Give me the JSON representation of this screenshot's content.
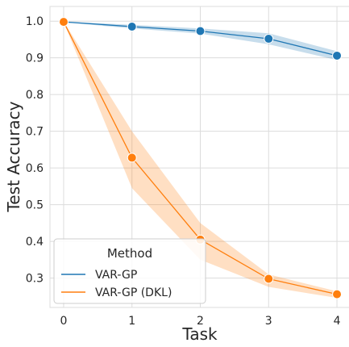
{
  "chart_data": {
    "type": "line",
    "title": "",
    "xlabel": "Task",
    "ylabel": "Test Accuracy",
    "x": [
      0,
      1,
      2,
      3,
      4
    ],
    "xlim": [
      -0.2,
      4.2
    ],
    "ylim": [
      0.22,
      1.04
    ],
    "xticks": [
      "0",
      "1",
      "2",
      "3",
      "4"
    ],
    "yticks": [
      "0.3",
      "0.4",
      "0.5",
      "0.6",
      "0.7",
      "0.8",
      "0.9",
      "1.0"
    ],
    "grid": true,
    "legend": {
      "title": "Method",
      "placement": "bottom-left"
    },
    "series": [
      {
        "name": "VAR-GP",
        "color": "#1f77b4",
        "values": [
          0.998,
          0.985,
          0.973,
          0.952,
          0.906
        ],
        "ci_low": [
          0.997,
          0.98,
          0.966,
          0.937,
          0.894
        ],
        "ci_high": [
          0.999,
          0.99,
          0.98,
          0.967,
          0.918
        ]
      },
      {
        "name": "VAR-GP (DKL)",
        "color": "#ff7f0e",
        "values": [
          0.998,
          0.628,
          0.405,
          0.298,
          0.256
        ],
        "ci_low": [
          0.997,
          0.545,
          0.35,
          0.276,
          0.246
        ],
        "ci_high": [
          0.999,
          0.7,
          0.45,
          0.31,
          0.264
        ]
      }
    ]
  }
}
